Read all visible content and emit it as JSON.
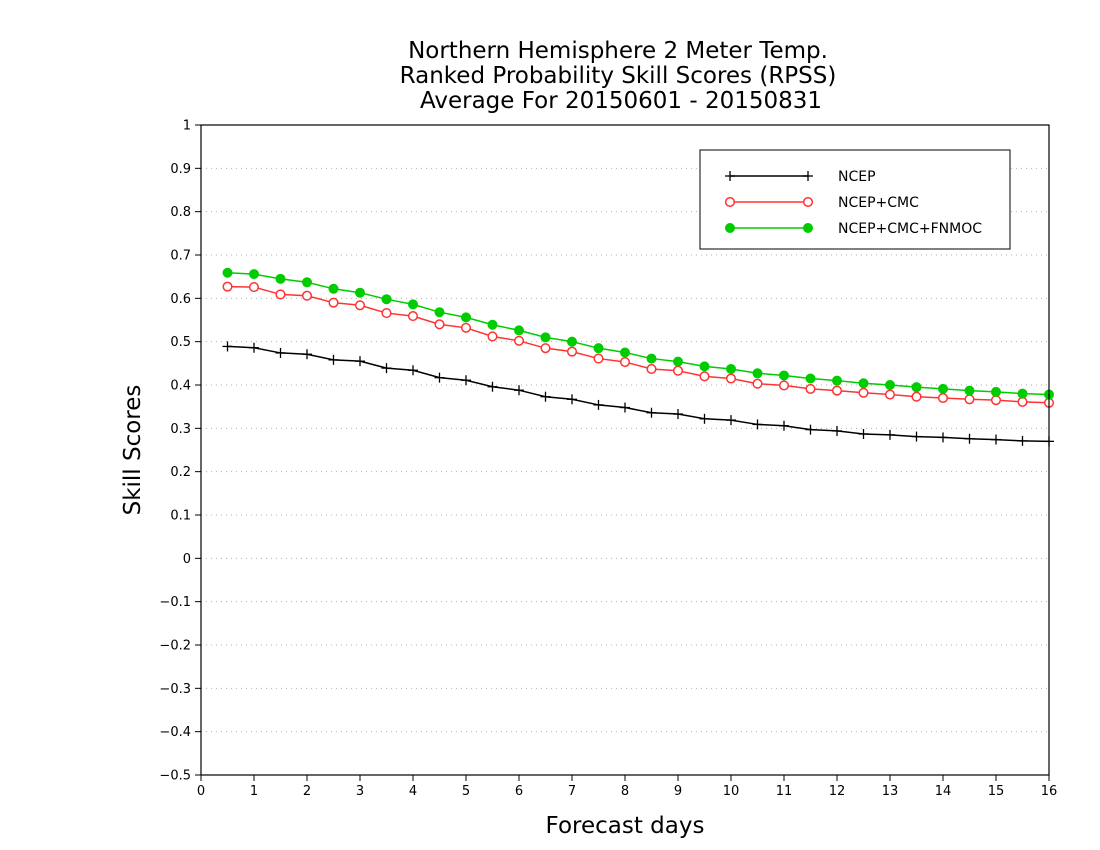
{
  "chart_data": {
    "type": "line",
    "title": [
      "Northern Hemisphere 2 Meter Temp.",
      "Ranked Probability Skill Scores (RPSS)",
      "Average For 20150601 - 20150831"
    ],
    "xlabel": "Forecast days",
    "ylabel": "Skill Scores",
    "xlim": [
      0,
      16
    ],
    "ylim": [
      -0.5,
      1
    ],
    "x_ticks": [
      "0",
      "1",
      "2",
      "3",
      "4",
      "5",
      "6",
      "7",
      "8",
      "9",
      "10",
      "11",
      "12",
      "13",
      "14",
      "15",
      "16"
    ],
    "y_ticks": [
      "−0.5",
      "−0.4",
      "−0.3",
      "−0.2",
      "−0.1",
      "0",
      "0.1",
      "0.2",
      "0.3",
      "0.4",
      "0.5",
      "0.6",
      "0.7",
      "0.8",
      "0.9",
      "1"
    ],
    "grid": "horizontal dotted",
    "legend_position": "top-right",
    "x": [
      0.5,
      1,
      1.5,
      2,
      2.5,
      3,
      3.5,
      4,
      4.5,
      5,
      5.5,
      6,
      6.5,
      7,
      7.5,
      8,
      8.5,
      9,
      9.5,
      10,
      10.5,
      11,
      11.5,
      12,
      12.5,
      13,
      13.5,
      14,
      14.5,
      15,
      15.5,
      16
    ],
    "series": [
      {
        "name": "NCEP",
        "color": "#000000",
        "marker": "plus",
        "values": [
          0.489,
          0.486,
          0.474,
          0.471,
          0.458,
          0.455,
          0.439,
          0.434,
          0.417,
          0.411,
          0.396,
          0.388,
          0.373,
          0.367,
          0.354,
          0.348,
          0.336,
          0.333,
          0.322,
          0.319,
          0.309,
          0.306,
          0.297,
          0.294,
          0.287,
          0.285,
          0.281,
          0.279,
          0.276,
          0.274,
          0.271,
          0.27
        ]
      },
      {
        "name": "NCEP+CMC",
        "color": "#ff3333",
        "marker": "open-circle",
        "values": [
          0.627,
          0.626,
          0.609,
          0.606,
          0.59,
          0.584,
          0.566,
          0.559,
          0.54,
          0.532,
          0.512,
          0.502,
          0.485,
          0.477,
          0.461,
          0.453,
          0.437,
          0.433,
          0.42,
          0.415,
          0.403,
          0.399,
          0.391,
          0.387,
          0.382,
          0.378,
          0.373,
          0.37,
          0.367,
          0.365,
          0.361,
          0.359
        ]
      },
      {
        "name": "NCEP+CMC+FNMOC",
        "color": "#00cc00",
        "marker": "filled-circle",
        "values": [
          0.659,
          0.656,
          0.645,
          0.637,
          0.622,
          0.613,
          0.598,
          0.586,
          0.568,
          0.556,
          0.539,
          0.526,
          0.51,
          0.5,
          0.485,
          0.475,
          0.461,
          0.454,
          0.443,
          0.437,
          0.427,
          0.422,
          0.415,
          0.41,
          0.404,
          0.4,
          0.395,
          0.391,
          0.387,
          0.384,
          0.38,
          0.378
        ]
      }
    ]
  }
}
